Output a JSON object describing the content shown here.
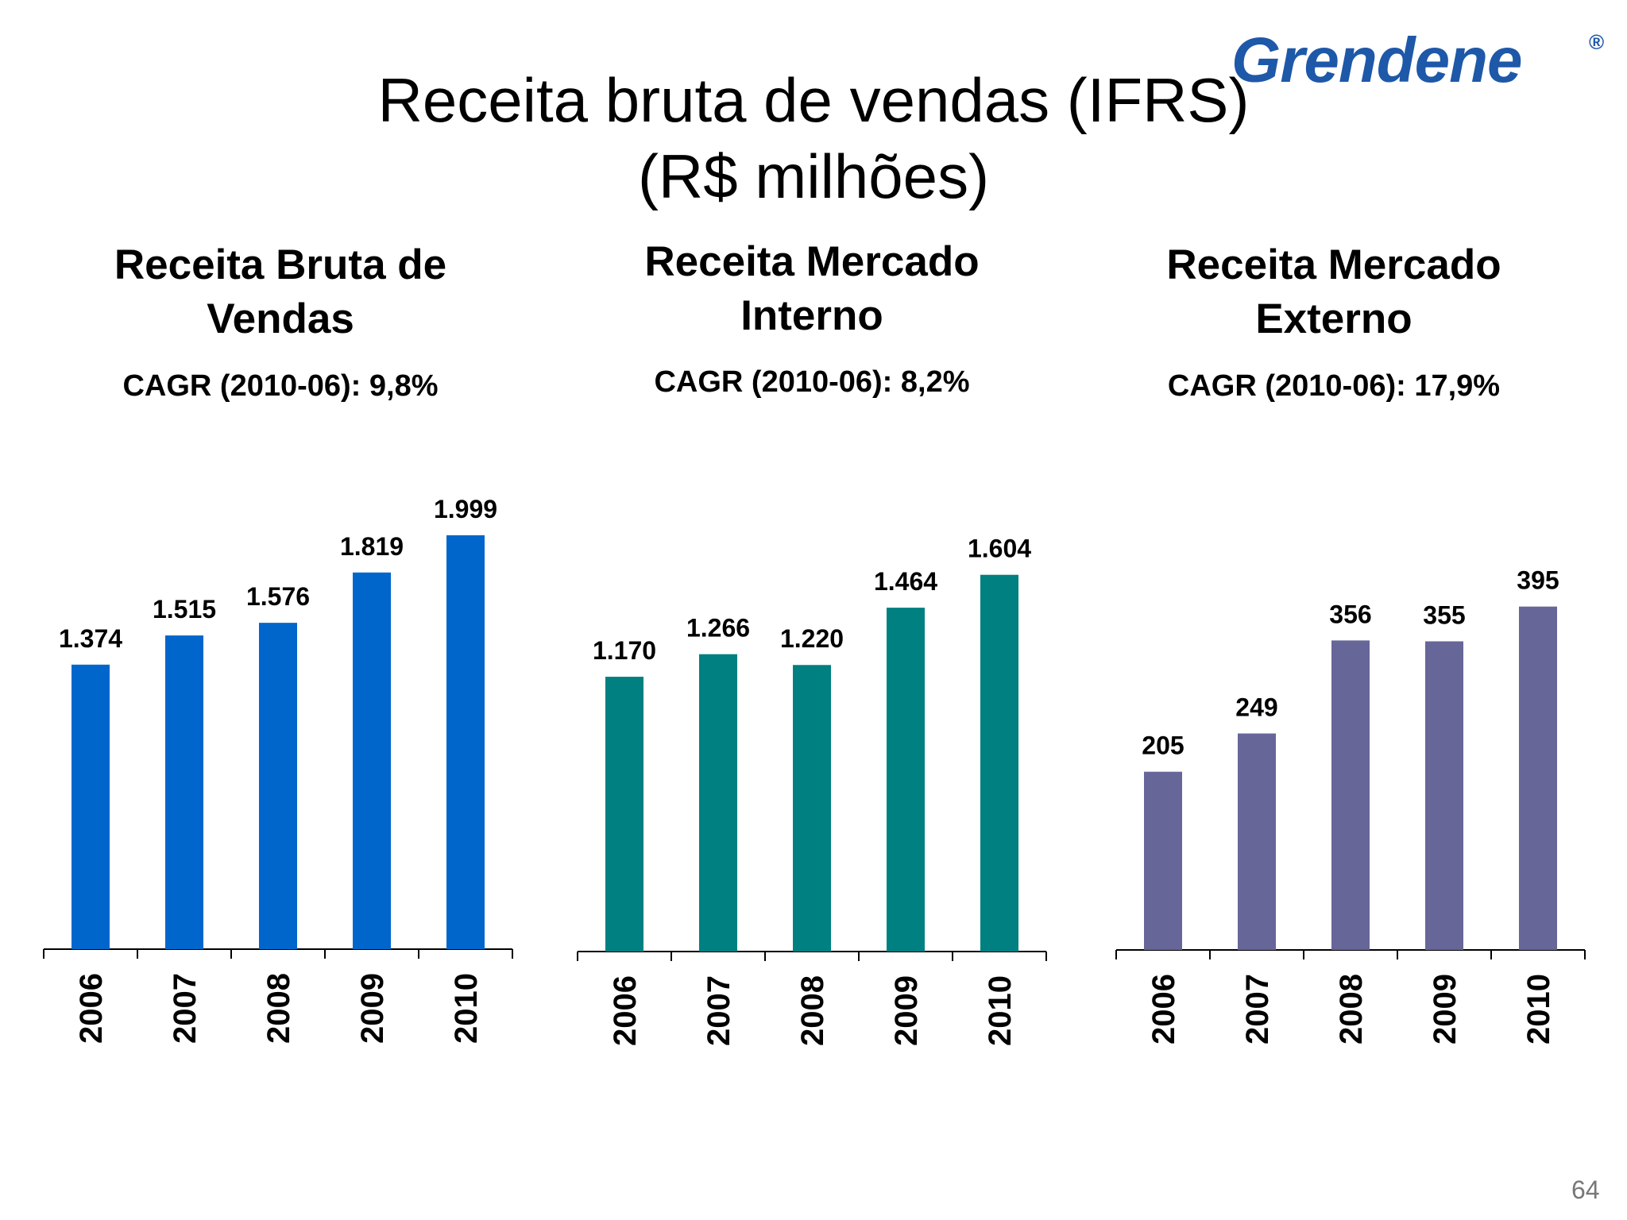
{
  "slide": {
    "title_line1": "Receita bruta de vendas (IFRS)",
    "title_line2": "(R$ milhões)",
    "logo_text": "Grendene",
    "logo_reg": "®",
    "page_number": "64"
  },
  "chart_data": [
    {
      "type": "bar",
      "title": "Receita Bruta de Vendas",
      "title_lines": [
        "Receita Bruta de",
        "Vendas"
      ],
      "subtitle": "CAGR (2010-06): 9,8%",
      "categories": [
        "2006",
        "2007",
        "2008",
        "2009",
        "2010"
      ],
      "values": [
        1374,
        1515,
        1576,
        1819,
        1999
      ],
      "value_labels": [
        "1.374",
        "1.515",
        "1.576",
        "1.819",
        "1.999"
      ],
      "color": "#0066CC",
      "grid": false
    },
    {
      "type": "bar",
      "title": "Receita Mercado Interno",
      "title_lines": [
        "Receita Mercado",
        "Interno"
      ],
      "subtitle": "CAGR (2010-06): 8,2%",
      "categories": [
        "2006",
        "2007",
        "2008",
        "2009",
        "2010"
      ],
      "values": [
        1170,
        1266,
        1220,
        1464,
        1604
      ],
      "value_labels": [
        "1.170",
        "1.266",
        "1.220",
        "1.464",
        "1.604"
      ],
      "color": "#008080",
      "grid": false
    },
    {
      "type": "bar",
      "title": "Receita Mercado Externo",
      "title_lines": [
        "Receita Mercado",
        "Externo"
      ],
      "subtitle": "CAGR (2010-06): 17,9%",
      "categories": [
        "2006",
        "2007",
        "2008",
        "2009",
        "2010"
      ],
      "values": [
        205,
        249,
        356,
        355,
        395
      ],
      "value_labels": [
        "205",
        "249",
        "356",
        "355",
        "395"
      ],
      "color": "#666699",
      "grid": false
    }
  ]
}
